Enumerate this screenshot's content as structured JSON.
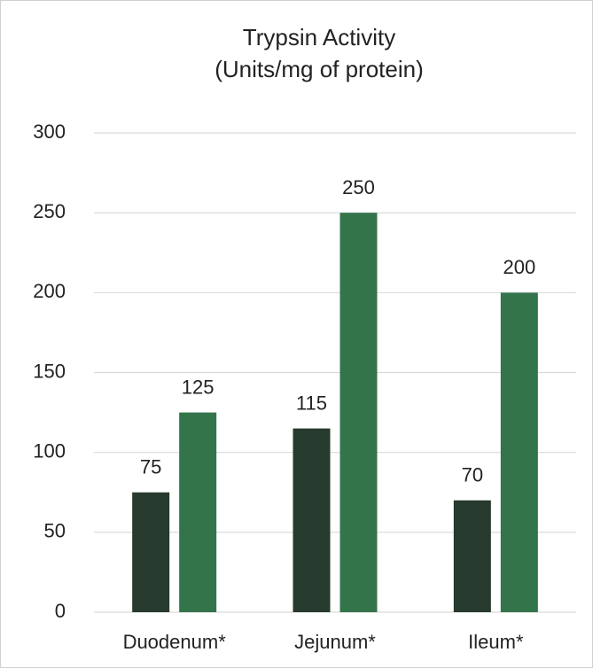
{
  "chart_data": {
    "type": "bar",
    "title": "Trypsin Activity",
    "subtitle": "(Units/mg of protein)",
    "categories": [
      "Duodenum*",
      "Jejunum*",
      "Ileum*"
    ],
    "series": [
      {
        "color": "#263a2e",
        "values": [
          75,
          115,
          70
        ]
      },
      {
        "color": "#33744a",
        "values": [
          125,
          250,
          200
        ]
      }
    ],
    "ylim": [
      0,
      300
    ],
    "yticks": [
      0,
      50,
      100,
      150,
      200,
      250,
      300
    ],
    "grid": true
  }
}
